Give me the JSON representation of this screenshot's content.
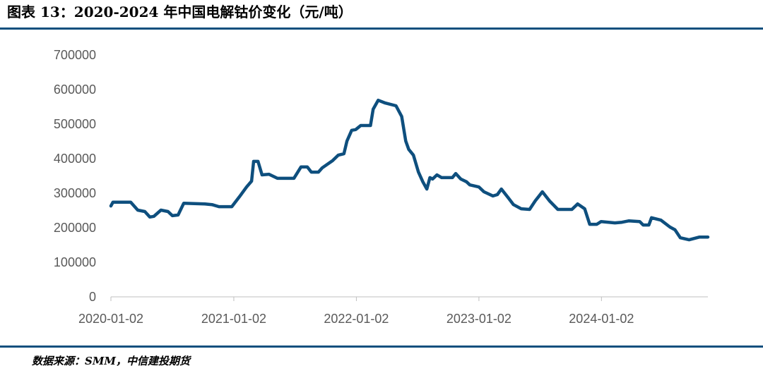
{
  "chart_data": {
    "type": "line",
    "title": "图表 13：2020-2024 年中国电解钴价变化（元/吨）",
    "source": "数据来源：SMM，中信建投期货",
    "x": [
      "2020-01-02",
      "2020-01-08",
      "2020-03-01",
      "2020-03-22",
      "2020-04-12",
      "2020-04-27",
      "2020-05-09",
      "2020-05-30",
      "2020-06-20",
      "2020-07-03",
      "2020-07-20",
      "2020-08-06",
      "2020-10-08",
      "2020-10-29",
      "2020-11-19",
      "2020-12-27",
      "2021-01-19",
      "2021-02-09",
      "2021-02-24",
      "2021-03-02",
      "2021-03-15",
      "2021-03-27",
      "2021-04-17",
      "2021-05-12",
      "2021-06-30",
      "2021-07-21",
      "2021-08-09",
      "2021-08-21",
      "2021-09-11",
      "2021-09-22",
      "2021-10-23",
      "2021-11-09",
      "2021-11-26",
      "2021-12-05",
      "2021-12-19",
      "2021-12-31",
      "2022-01-15",
      "2022-02-13",
      "2022-02-21",
      "2022-03-08",
      "2022-03-29",
      "2022-04-30",
      "2022-05-17",
      "2022-05-29",
      "2022-06-07",
      "2022-06-21",
      "2022-07-06",
      "2022-07-19",
      "2022-07-31",
      "2022-08-09",
      "2022-08-17",
      "2022-08-30",
      "2022-09-13",
      "2022-10-15",
      "2022-10-25",
      "2022-11-09",
      "2022-11-26",
      "2022-12-06",
      "2023-01-02",
      "2023-01-17",
      "2023-02-13",
      "2023-02-26",
      "2023-03-10",
      "2023-03-31",
      "2023-04-15",
      "2023-05-08",
      "2023-06-02",
      "2023-06-19",
      "2023-07-10",
      "2023-07-31",
      "2023-08-25",
      "2023-10-06",
      "2023-10-23",
      "2023-11-13",
      "2023-11-28",
      "2023-12-19",
      "2024-01-01",
      "2024-02-11",
      "2024-03-03",
      "2024-03-24",
      "2024-04-25",
      "2024-05-05",
      "2024-05-22",
      "2024-05-30",
      "2024-06-27",
      "2024-07-24",
      "2024-08-08",
      "2024-08-24",
      "2024-09-19",
      "2024-10-20",
      "2024-11-14"
    ],
    "series": [
      {
        "color": "#0e4f7e",
        "values": [
          263000,
          274000,
          274000,
          251000,
          247000,
          231000,
          233000,
          251000,
          247000,
          235000,
          237000,
          271000,
          269000,
          267000,
          261000,
          261000,
          290000,
          318000,
          335000,
          392000,
          392000,
          353000,
          355000,
          343000,
          343000,
          376000,
          376000,
          361000,
          361000,
          373000,
          394000,
          410000,
          414000,
          451000,
          482000,
          484000,
          496000,
          496000,
          543000,
          569000,
          561000,
          553000,
          522000,
          451000,
          427000,
          410000,
          361000,
          333000,
          312000,
          345000,
          341000,
          353000,
          345000,
          345000,
          357000,
          341000,
          333000,
          324000,
          318000,
          304000,
          292000,
          296000,
          312000,
          286000,
          267000,
          255000,
          253000,
          278000,
          304000,
          278000,
          253000,
          253000,
          269000,
          255000,
          210000,
          210000,
          218000,
          214000,
          216000,
          220000,
          218000,
          208000,
          208000,
          229000,
          222000,
          202000,
          194000,
          171000,
          165000,
          173000,
          173000
        ]
      }
    ],
    "xlim": [
      "2020-01-02",
      "2024-11-14"
    ],
    "xticks": [
      "2020-01-02",
      "2021-01-02",
      "2022-01-02",
      "2023-01-02",
      "2024-01-02"
    ],
    "ylim": [
      0,
      700000
    ],
    "yticks": [
      0,
      100000,
      200000,
      300000,
      400000,
      500000,
      600000,
      700000
    ],
    "grid": false
  }
}
